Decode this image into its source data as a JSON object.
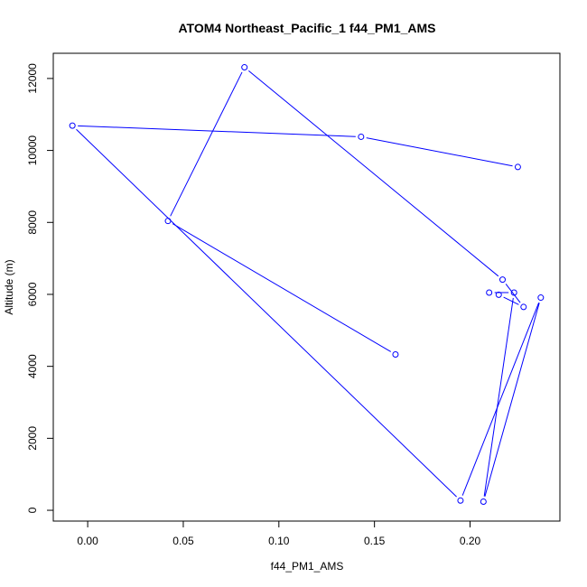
{
  "chart_data": {
    "type": "line",
    "title": "ATOM4 Northeast_Pacific_1 f44_PM1_AMS",
    "xlabel": "f44_PM1_AMS",
    "ylabel": "Altitude (m)",
    "xlim": [
      -0.018,
      0.247
    ],
    "ylim": [
      -300,
      12700
    ],
    "x_ticks": [
      0.0,
      0.05,
      0.1,
      0.15,
      0.2
    ],
    "x_tick_labels": [
      "0.00",
      "0.05",
      "0.10",
      "0.15",
      "0.20"
    ],
    "y_ticks": [
      0,
      2000,
      4000,
      6000,
      8000,
      10000,
      12000
    ],
    "y_tick_labels": [
      "0",
      "2000",
      "4000",
      "6000",
      "8000",
      "10000",
      "12000"
    ],
    "grid": false,
    "series": [
      {
        "color": "#0000ff",
        "marker": "open-circle",
        "x": [
          0.161,
          0.042,
          0.082,
          0.217,
          0.228,
          0.215,
          0.21,
          0.223,
          0.207,
          0.237,
          0.195,
          -0.008,
          0.143,
          0.225
        ],
        "y": [
          4330,
          8040,
          12310,
          6410,
          5650,
          5990,
          6050,
          6050,
          240,
          5910,
          270,
          10690,
          10380,
          9540
        ]
      }
    ]
  }
}
